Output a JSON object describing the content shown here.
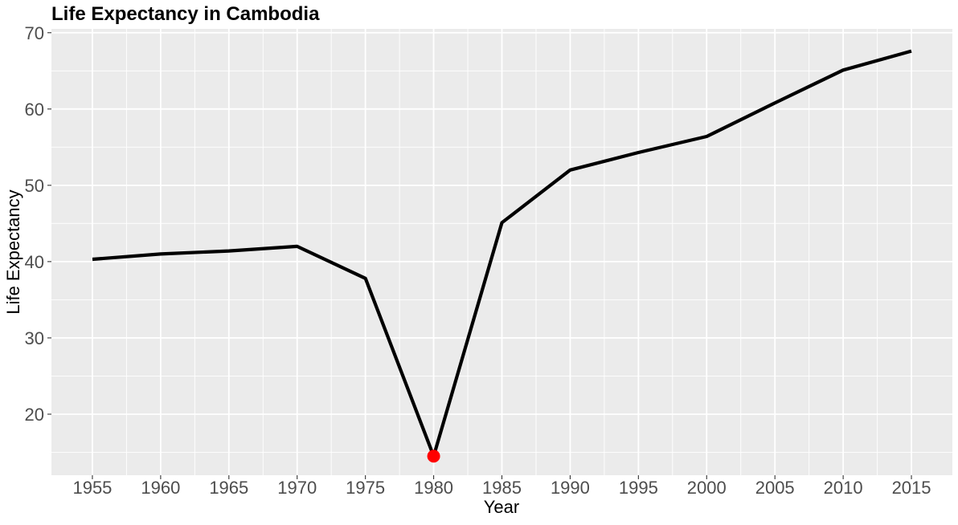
{
  "chart_data": {
    "type": "line",
    "title": "Life Expectancy in Cambodia",
    "xlabel": "Year",
    "ylabel": "Life Expectancy",
    "x": [
      1955,
      1960,
      1965,
      1970,
      1975,
      1980,
      1985,
      1990,
      1995,
      2000,
      2005,
      2010,
      2015
    ],
    "series": [
      {
        "values": [
          40.3,
          41.0,
          41.4,
          42.0,
          37.8,
          14.5,
          45.1,
          52.0,
          54.3,
          56.4,
          60.8,
          65.1,
          67.6
        ],
        "color": "#000000"
      }
    ],
    "highlight": {
      "x": 1980,
      "y": 14.5,
      "color": "#ff0000"
    },
    "xticks": [
      "1955",
      "1960",
      "1965",
      "1970",
      "1975",
      "1980",
      "1985",
      "1990",
      "1995",
      "2000",
      "2005",
      "2010",
      "2015"
    ],
    "yticks": [
      "20",
      "30",
      "40",
      "50",
      "60",
      "70"
    ],
    "xlim": [
      1952,
      2018
    ],
    "ylim": [
      12,
      70.5
    ],
    "grid": true,
    "panel_background": "#ebebeb",
    "grid_color": "#ffffff"
  }
}
